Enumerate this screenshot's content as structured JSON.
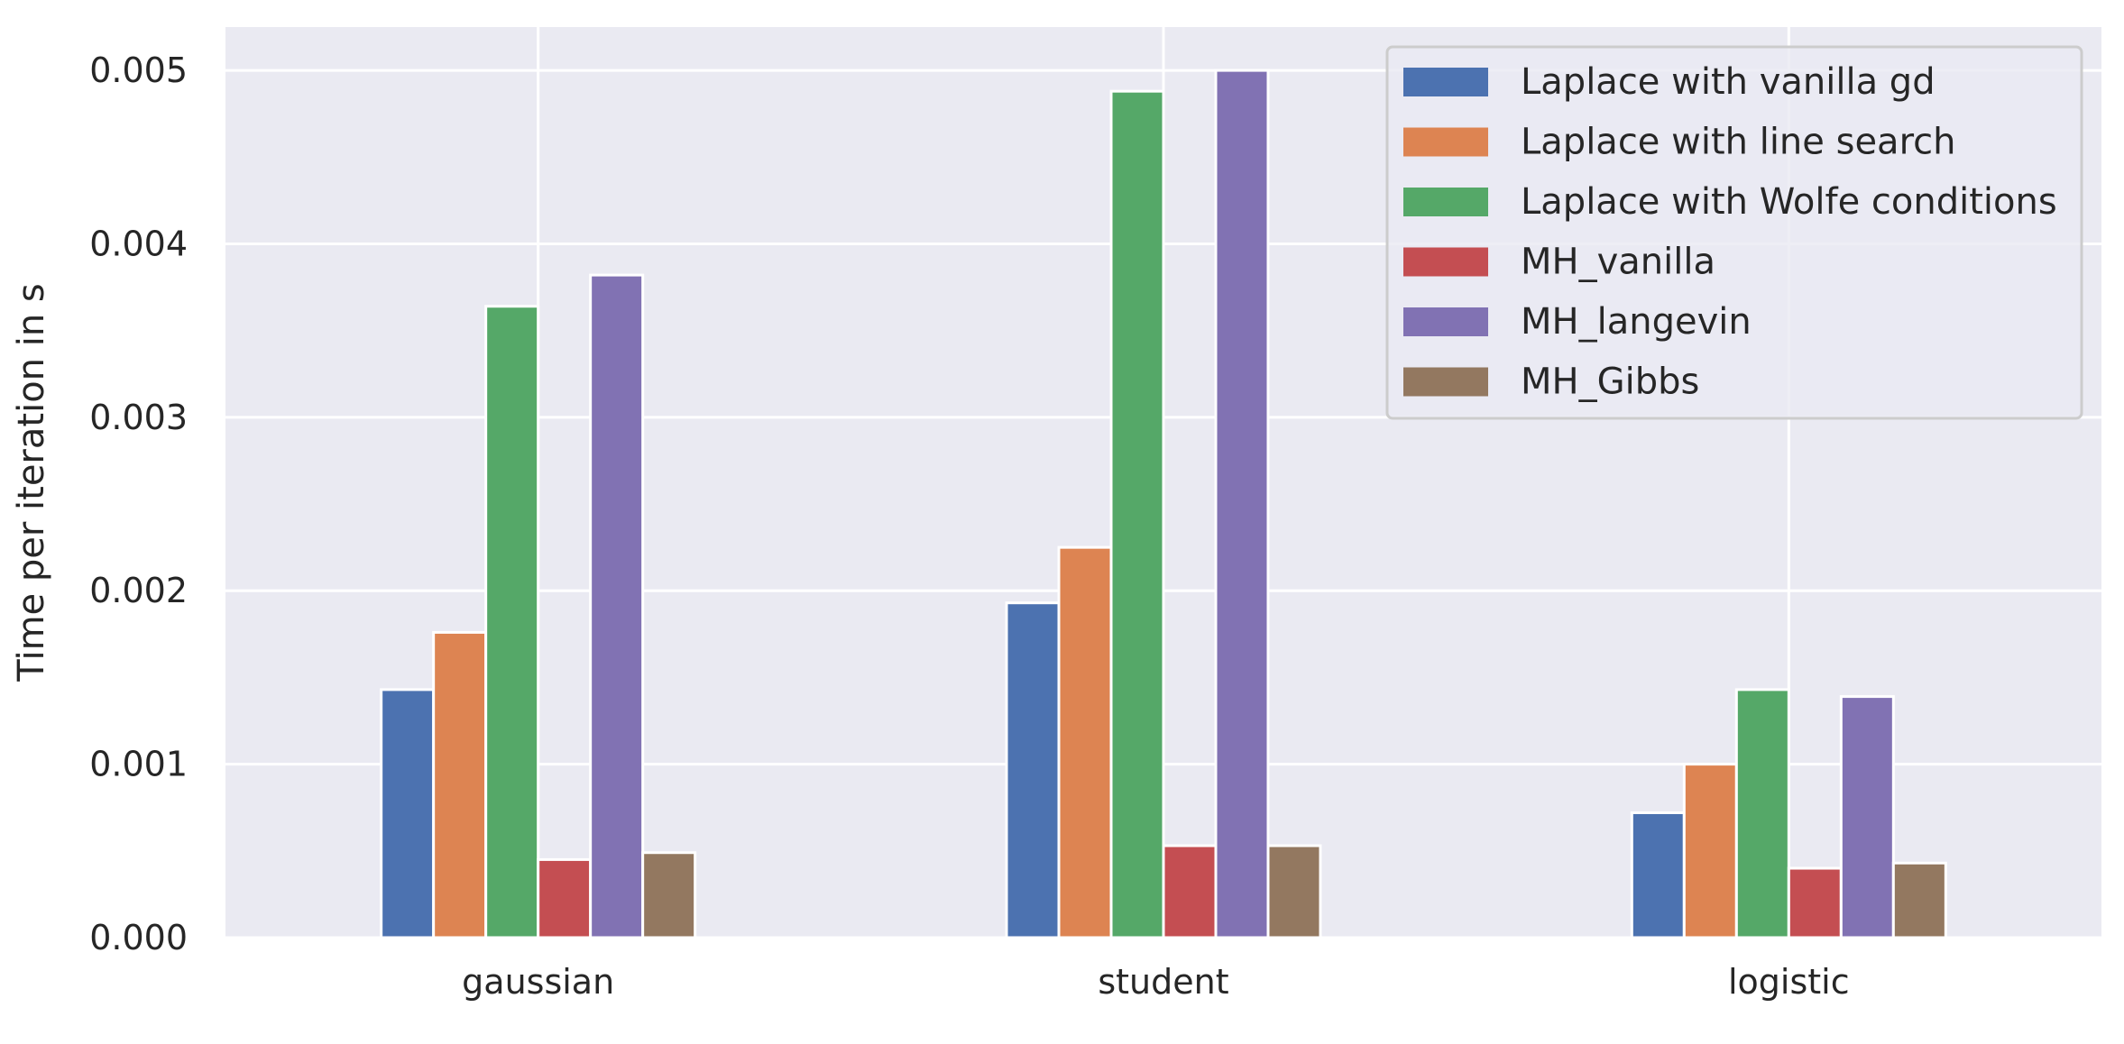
{
  "chart_data": {
    "type": "bar",
    "title": "",
    "xlabel": "",
    "ylabel": "Time per iteration in s",
    "ylim": [
      0,
      0.00525
    ],
    "yticks": [
      "0.000",
      "0.001",
      "0.002",
      "0.003",
      "0.004",
      "0.005"
    ],
    "ytick_values": [
      0,
      0.001,
      0.002,
      0.003,
      0.004,
      0.005
    ],
    "categories": [
      "gaussian",
      "student",
      "logistic"
    ],
    "grid": true,
    "legend_position": "top-right",
    "series": [
      {
        "name": "Laplace with vanilla gd",
        "color": "#4c72b0",
        "values": [
          0.00143,
          0.00193,
          0.00072
        ]
      },
      {
        "name": "Laplace with line search",
        "color": "#dd8452",
        "values": [
          0.00176,
          0.00225,
          0.001
        ]
      },
      {
        "name": "Laplace with Wolfe conditions",
        "color": "#55a868",
        "values": [
          0.00364,
          0.00488,
          0.00143
        ]
      },
      {
        "name": "MH_vanilla",
        "color": "#c44e52",
        "values": [
          0.00045,
          0.00053,
          0.0004
        ]
      },
      {
        "name": "MH_langevin",
        "color": "#8172b3",
        "values": [
          0.00382,
          0.005,
          0.00139
        ]
      },
      {
        "name": "MH_Gibbs",
        "color": "#937860",
        "values": [
          0.00049,
          0.00053,
          0.00043
        ]
      }
    ]
  },
  "colors": {
    "plot_background": "#eaeaf2",
    "grid": "#ffffff"
  }
}
